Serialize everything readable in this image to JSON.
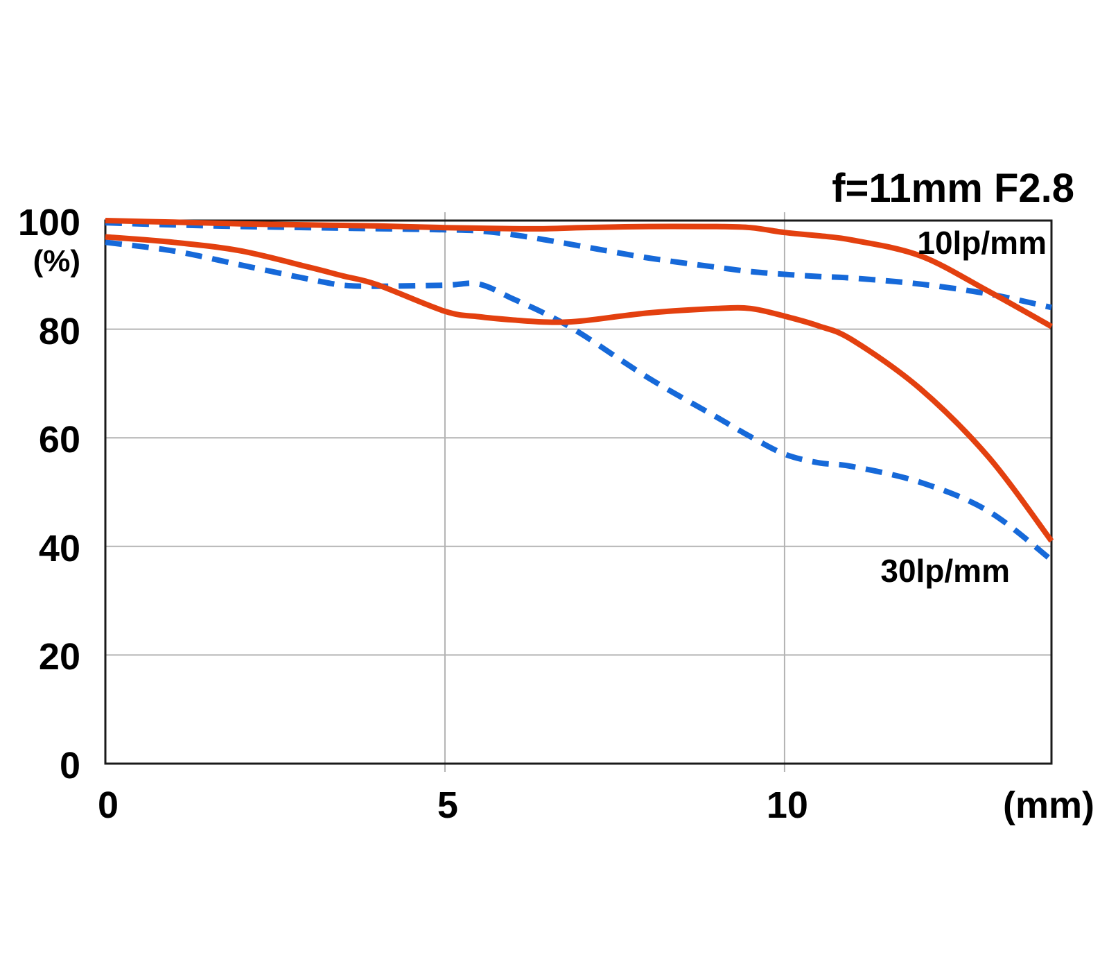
{
  "title": "f=11mm F2.8",
  "axis": {
    "y_unit_label": "(%)",
    "x_unit_label": "(mm)"
  },
  "series_labels": {
    "lp10": "10lp/mm",
    "lp30": "30lp/mm"
  },
  "colors": {
    "sagittal_red": "#e3400f",
    "meridional_blue": "#1669d9",
    "grid": "#b3b3b3",
    "axis_border": "#1a1a1a",
    "text": "#000000",
    "background": "#ffffff"
  },
  "chart_data": {
    "type": "line",
    "title": "f=11mm F2.8",
    "xlabel": "(mm)",
    "ylabel": "(%)",
    "xlim": [
      0,
      13.93
    ],
    "ylim": [
      0,
      100
    ],
    "x_ticks": [
      0,
      5,
      10
    ],
    "y_ticks": [
      0,
      20,
      40,
      60,
      80,
      100
    ],
    "grid": true,
    "legend_annotations": [
      "10lp/mm",
      "30lp/mm"
    ],
    "x": [
      0,
      1,
      2,
      3,
      3.5,
      4,
      5,
      5.5,
      6,
      6.5,
      7,
      8,
      9,
      9.5,
      10,
      10.5,
      11,
      12,
      13,
      13.93
    ],
    "series": [
      {
        "name": "10lp/mm meridional",
        "style": "dashed",
        "color": "#1669d9",
        "values": [
          99.6,
          99.2,
          98.9,
          98.7,
          98.6,
          98.5,
          98.3,
          98.1,
          97.4,
          96.4,
          95.3,
          93.1,
          91.4,
          90.6,
          90.1,
          89.7,
          89.4,
          88.3,
          86.5,
          84.0
        ]
      },
      {
        "name": "30lp/mm meridional",
        "style": "dashed",
        "color": "#1669d9",
        "values": [
          96.0,
          94.4,
          91.8,
          89.2,
          88.1,
          87.9,
          88.1,
          88.3,
          85.6,
          82.7,
          79.2,
          71.0,
          63.8,
          60.2,
          57.0,
          55.4,
          54.7,
          51.8,
          46.5,
          37.5
        ]
      },
      {
        "name": "10lp/mm sagittal",
        "style": "solid",
        "color": "#e3400f",
        "values": [
          100,
          99.7,
          99.4,
          99.2,
          99.1,
          99.0,
          98.7,
          98.6,
          98.5,
          98.5,
          98.7,
          98.9,
          98.9,
          98.7,
          97.8,
          97.2,
          96.4,
          93.5,
          87.0,
          80.5
        ]
      },
      {
        "name": "30lp/mm sagittal",
        "style": "solid",
        "color": "#e3400f",
        "values": [
          97.0,
          96.0,
          94.4,
          91.4,
          89.8,
          88.2,
          83.3,
          82.3,
          81.7,
          81.3,
          81.5,
          83.0,
          83.8,
          83.8,
          82.4,
          80.6,
          78.0,
          69.0,
          56.5,
          41.0
        ]
      }
    ]
  }
}
